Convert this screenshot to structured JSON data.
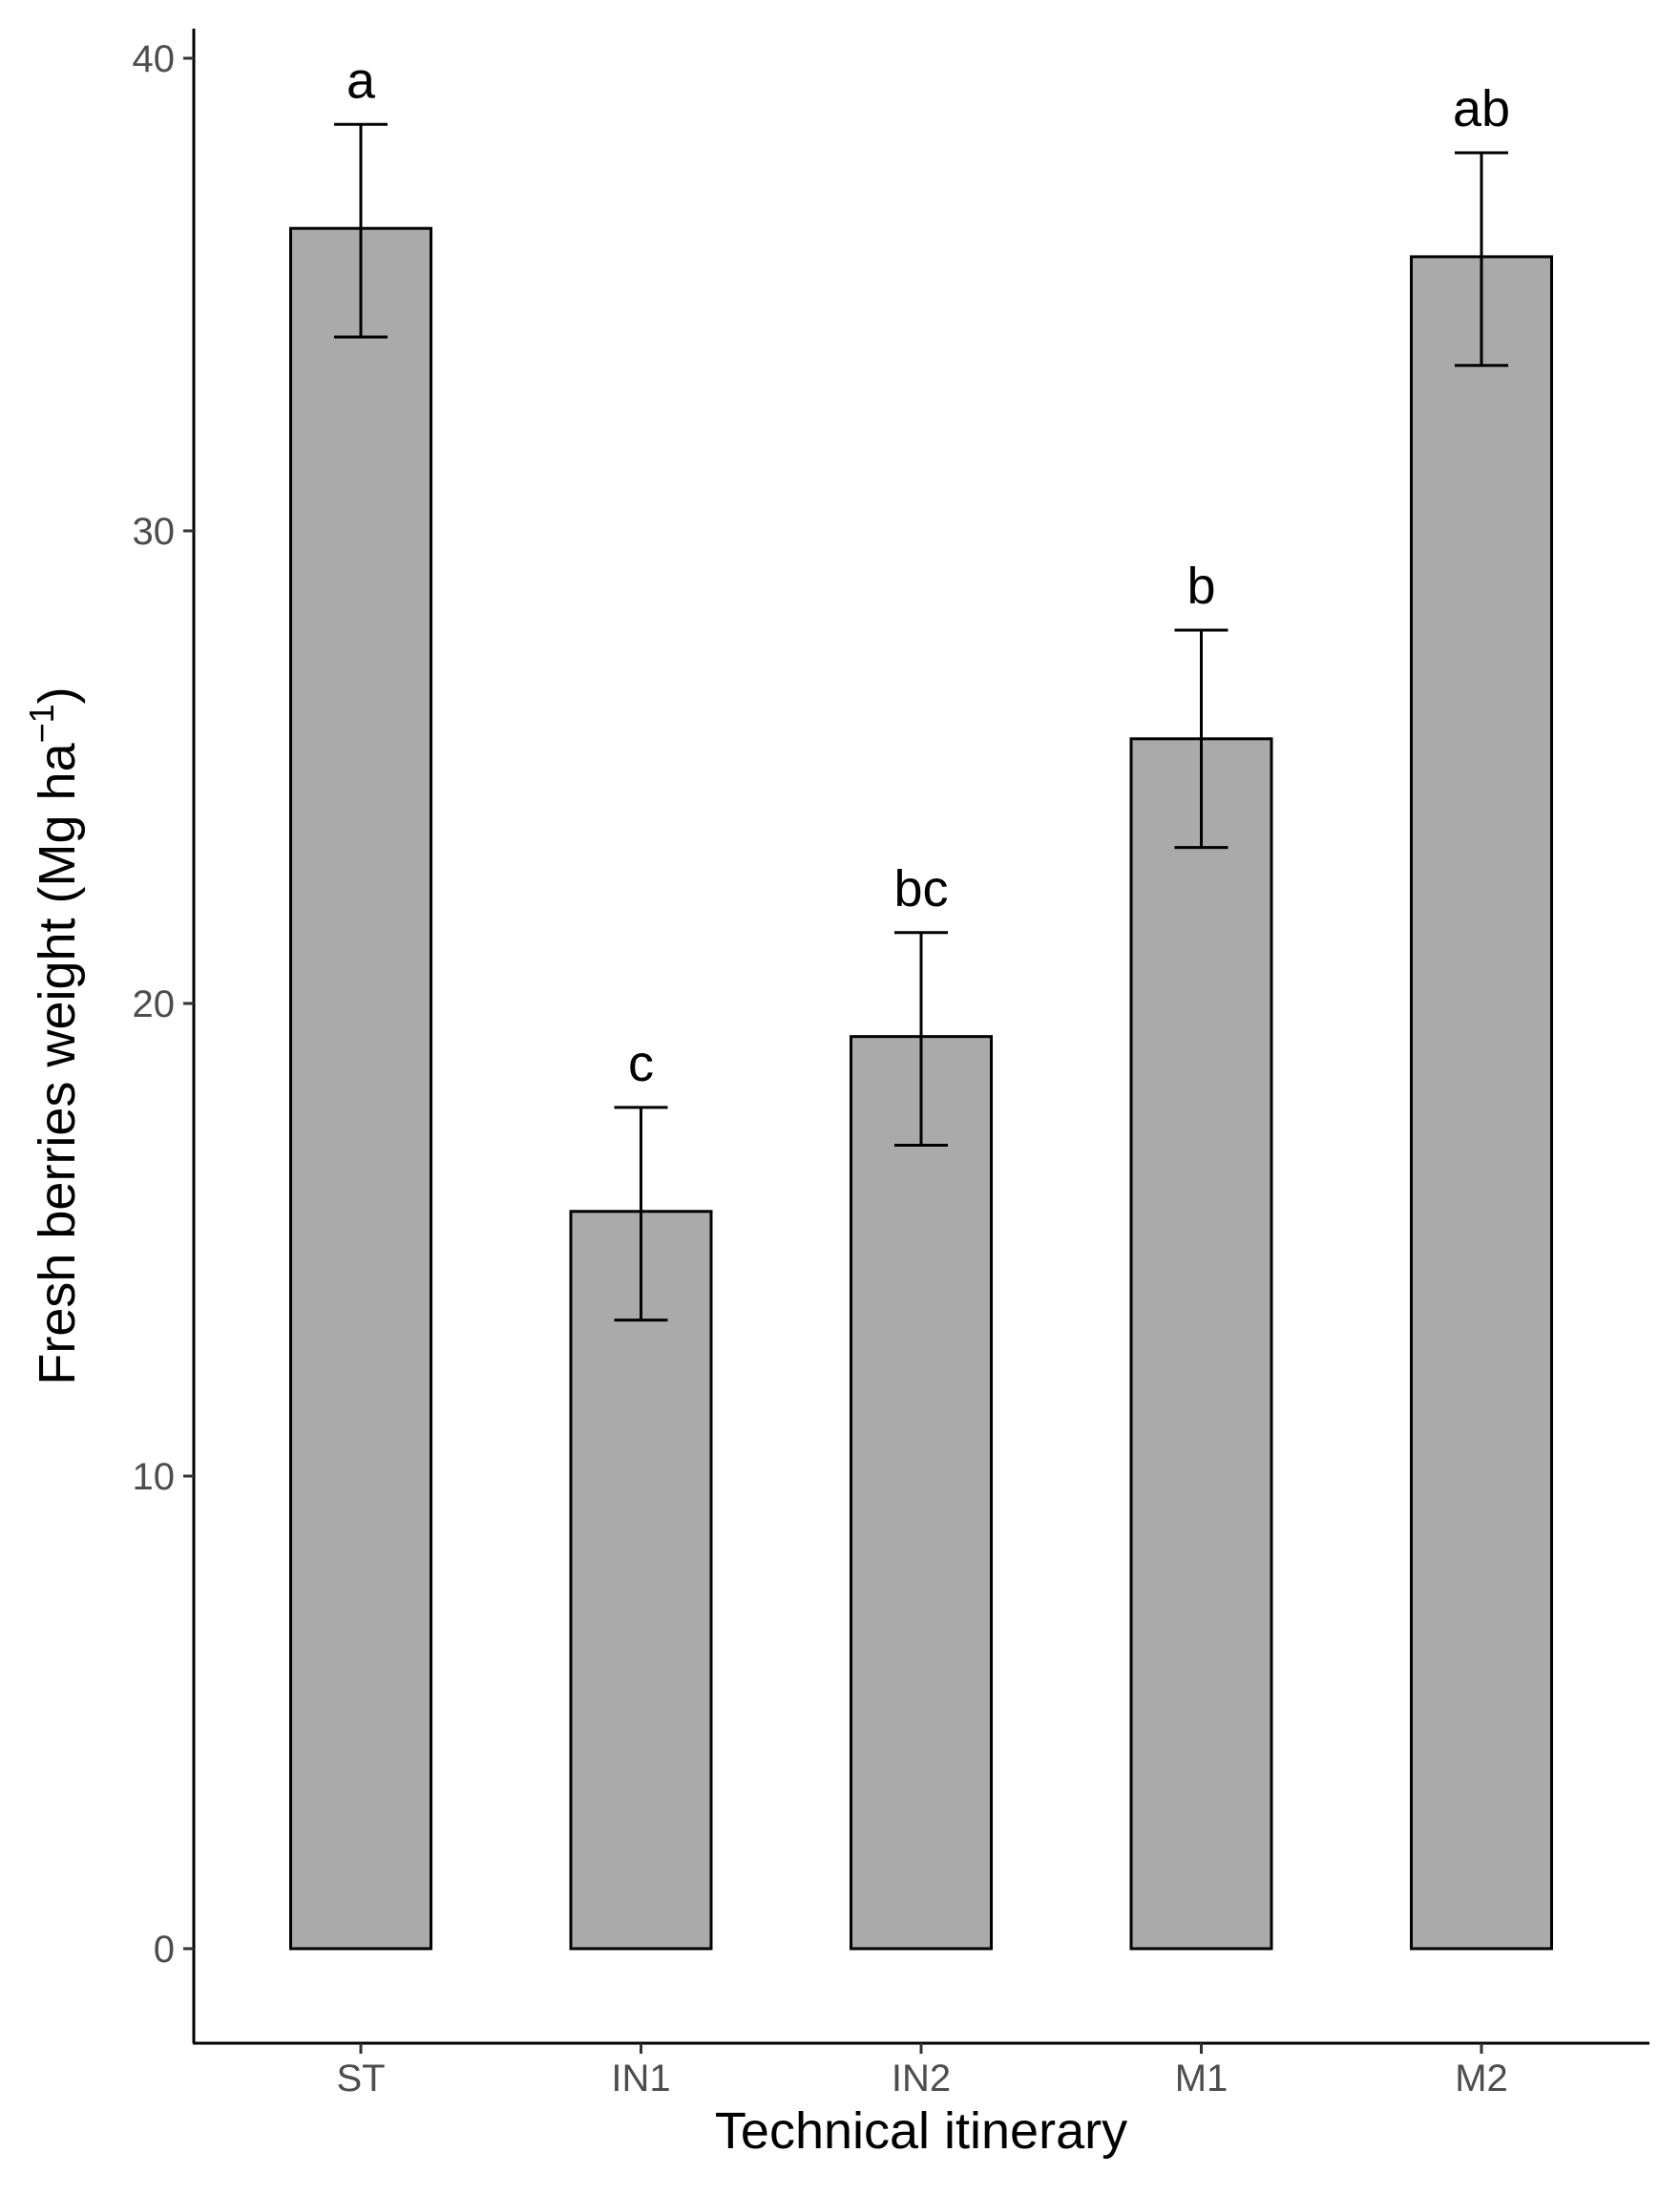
{
  "chart_data": {
    "type": "bar",
    "categories": [
      "ST",
      "IN1",
      "IN2",
      "M1",
      "M2"
    ],
    "values": [
      36.4,
      15.6,
      19.3,
      25.6,
      35.8
    ],
    "error_low": [
      34.1,
      13.3,
      17.0,
      23.3,
      33.5
    ],
    "error_high": [
      38.6,
      17.8,
      21.5,
      27.9,
      38.0
    ],
    "significance_letters": [
      "a",
      "c",
      "bc",
      "b",
      "ab"
    ],
    "xlabel": "Technical itinerary",
    "ylabel_main": "Fresh berries weight (Mg ha",
    "ylabel_superscript": "−1",
    "ylabel_close": ")",
    "ylim": [
      -1.8,
      40.6
    ],
    "yticks": [
      "0",
      "10",
      "20",
      "30",
      "40"
    ],
    "grid": false,
    "bar_color": "#aaaaaa",
    "edge_color": "#000000"
  }
}
